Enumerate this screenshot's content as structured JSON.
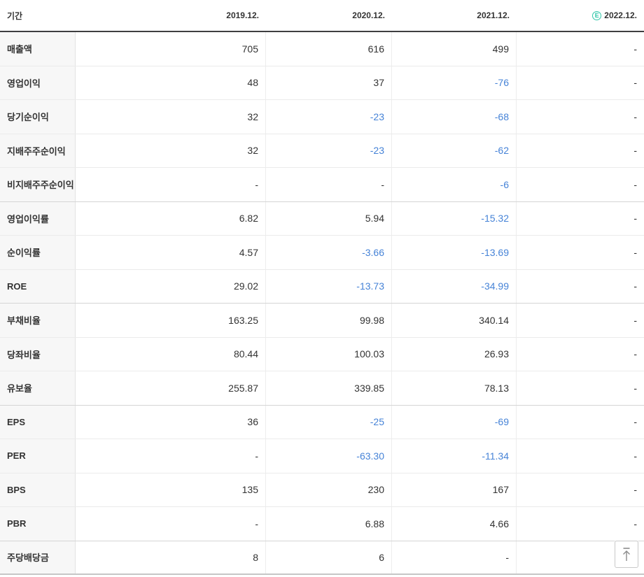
{
  "table": {
    "header": {
      "period_label": "기간",
      "columns": [
        "2019.12.",
        "2020.12.",
        "2021.12.",
        "2022.12."
      ],
      "estimate_badge": "E",
      "estimate_column_index": 3
    },
    "rows": [
      {
        "label": "매출액",
        "values": [
          "705",
          "616",
          "499",
          "-"
        ],
        "group_end": false
      },
      {
        "label": "영업이익",
        "values": [
          "48",
          "37",
          "-76",
          "-"
        ],
        "group_end": false
      },
      {
        "label": "당기순이익",
        "values": [
          "32",
          "-23",
          "-68",
          "-"
        ],
        "group_end": false
      },
      {
        "label": "지배주주순이익",
        "values": [
          "32",
          "-23",
          "-62",
          "-"
        ],
        "group_end": false
      },
      {
        "label": "비지배주주순이익",
        "values": [
          "-",
          "-",
          "-6",
          "-"
        ],
        "group_end": true
      },
      {
        "label": "영업이익률",
        "values": [
          "6.82",
          "5.94",
          "-15.32",
          "-"
        ],
        "group_end": false
      },
      {
        "label": "순이익률",
        "values": [
          "4.57",
          "-3.66",
          "-13.69",
          "-"
        ],
        "group_end": false
      },
      {
        "label": "ROE",
        "values": [
          "29.02",
          "-13.73",
          "-34.99",
          "-"
        ],
        "group_end": true
      },
      {
        "label": "부채비율",
        "values": [
          "163.25",
          "99.98",
          "340.14",
          "-"
        ],
        "group_end": false
      },
      {
        "label": "당좌비율",
        "values": [
          "80.44",
          "100.03",
          "26.93",
          "-"
        ],
        "group_end": false
      },
      {
        "label": "유보율",
        "values": [
          "255.87",
          "339.85",
          "78.13",
          "-"
        ],
        "group_end": true
      },
      {
        "label": "EPS",
        "values": [
          "36",
          "-25",
          "-69",
          "-"
        ],
        "group_end": false
      },
      {
        "label": "PER",
        "values": [
          "-",
          "-63.30",
          "-11.34",
          "-"
        ],
        "group_end": false
      },
      {
        "label": "BPS",
        "values": [
          "135",
          "230",
          "167",
          "-"
        ],
        "group_end": false
      },
      {
        "label": "PBR",
        "values": [
          "-",
          "6.88",
          "4.66",
          "-"
        ],
        "group_end": true
      },
      {
        "label": "주당배당금",
        "values": [
          "8",
          "6",
          "-",
          "-"
        ],
        "group_end": false
      }
    ]
  },
  "colors": {
    "negative_value": "#4683d7",
    "estimate_icon": "#2fc7a8",
    "header_underline": "#3e3e40"
  },
  "scroll_top_button": {
    "icon": "arrow-up-to-top"
  }
}
